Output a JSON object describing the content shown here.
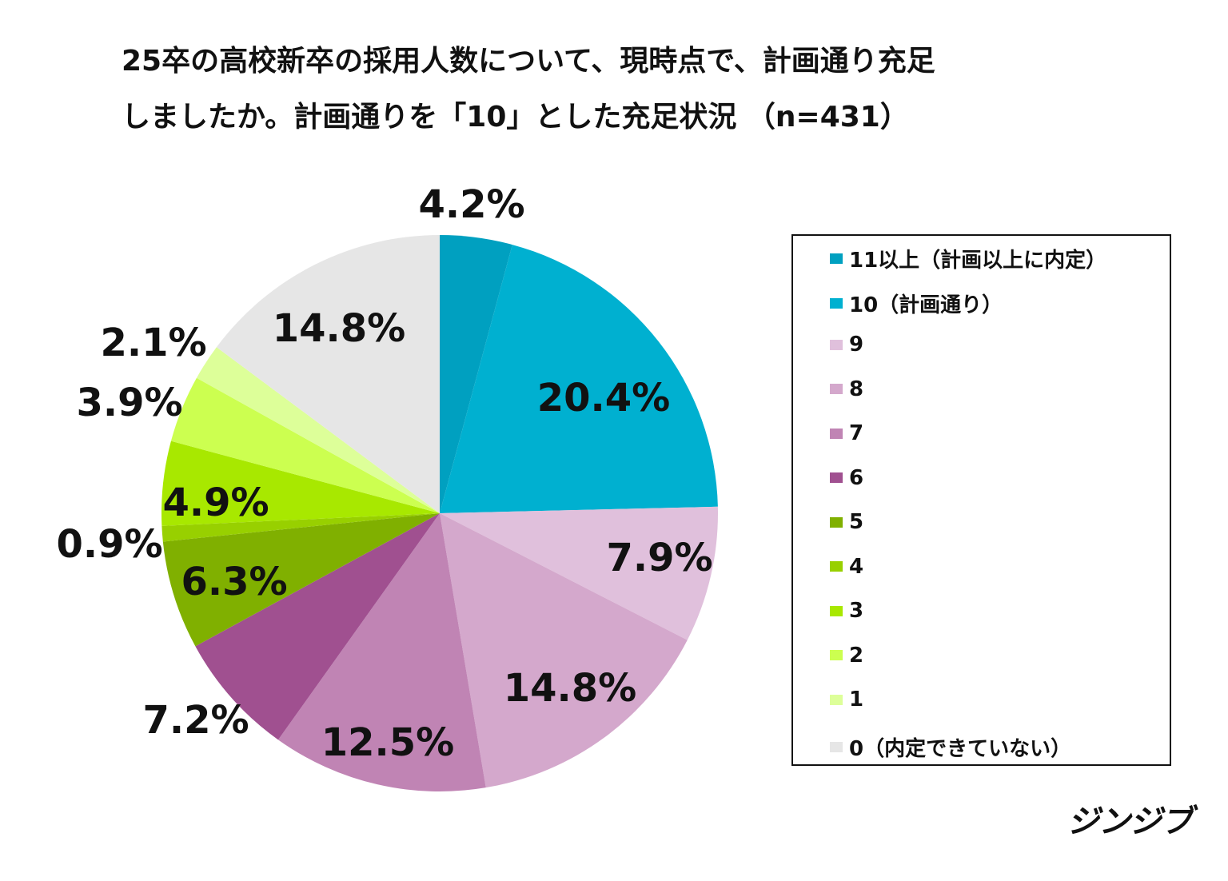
{
  "chart_data": {
    "type": "pie",
    "title_line1": "25卒の高校新卒の採用人数について、現時点で、計画通り充足",
    "title_line2": "しましたか。計画通りを「10」とした充足状況 （n=431）",
    "unit": "%",
    "start": "top, clockwise",
    "legend_position": "right",
    "slices": [
      {
        "label": "11以上（計画以上に内定）",
        "value": 4.2,
        "display": "4.2%",
        "color": "#00A0C0"
      },
      {
        "label": "10（計画通り）",
        "value": 20.4,
        "display": "20.4%",
        "color": "#00B0D0"
      },
      {
        "label": "9",
        "value": 7.9,
        "display": "7.9%",
        "color": "#E0C0DC"
      },
      {
        "label": "8",
        "value": 14.8,
        "display": "14.8%",
        "color": "#D4A8CC"
      },
      {
        "label": "7",
        "value": 12.5,
        "display": "12.5%",
        "color": "#C084B4"
      },
      {
        "label": "6",
        "value": 7.2,
        "display": "7.2%",
        "color": "#A05090"
      },
      {
        "label": "5",
        "value": 6.3,
        "display": "6.3%",
        "color": "#80B000"
      },
      {
        "label": "4",
        "value": 0.9,
        "display": "0.9%",
        "color": "#98D000"
      },
      {
        "label": "3",
        "value": 4.9,
        "display": "4.9%",
        "color": "#A8E800"
      },
      {
        "label": "2",
        "value": 3.9,
        "display": "3.9%",
        "color": "#CCFF50"
      },
      {
        "label": "1",
        "value": 2.1,
        "display": "2.1%",
        "color": "#DDFF99"
      },
      {
        "label": "0（内定できていない）",
        "value": 14.8,
        "display": "14.8%",
        "color": "#E6E6E6"
      }
    ]
  },
  "brand": "ジンジブ"
}
